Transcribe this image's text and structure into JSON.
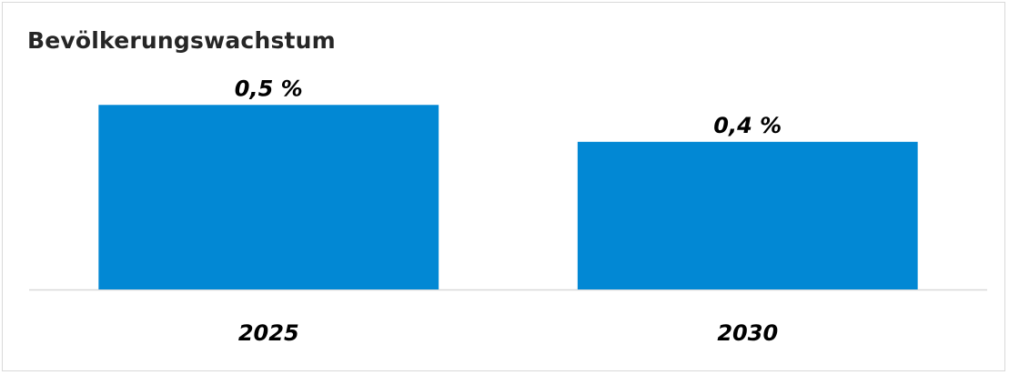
{
  "chart_data": {
    "type": "bar",
    "title": "Bevölkerungswachstum",
    "categories": [
      "2025",
      "2030"
    ],
    "values": [
      0.5,
      0.4
    ],
    "value_labels": [
      "0,5 %",
      "0,4 %"
    ],
    "xlabel": "",
    "ylabel": "",
    "ylim": [
      0,
      0.55
    ],
    "grid": false,
    "legend": "none",
    "bar_color": "#0288d4",
    "axis_color": "#d9d9d9"
  }
}
